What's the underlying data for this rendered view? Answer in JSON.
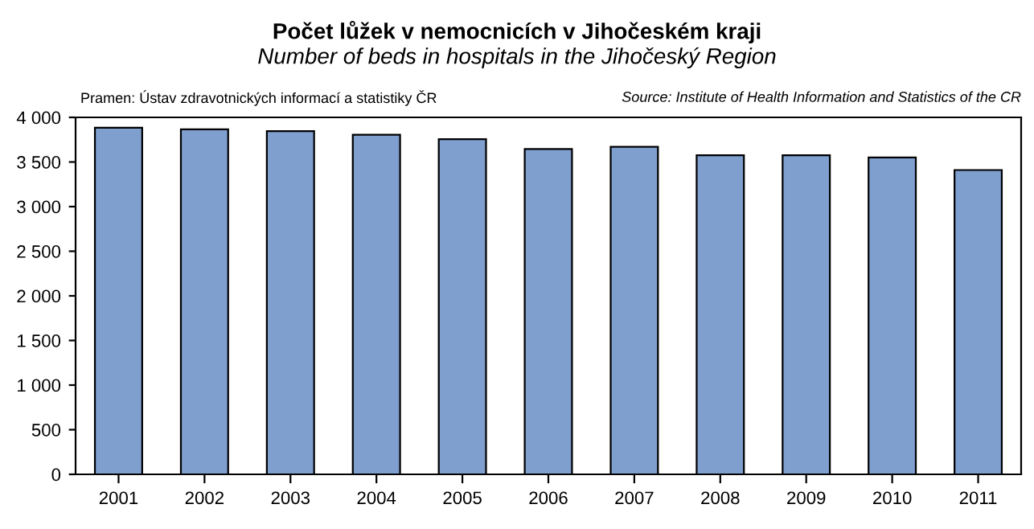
{
  "chart_data": {
    "type": "bar",
    "title": "Počet lůžek v nemocnicích v Jihočeském kraji",
    "subtitle": "Number of beds in hospitals in the Jihočeský Region",
    "annotations": [
      "Pramen: Ústav zdravotnických informací a statistiky ČR",
      "Source: Institute of Health Information and Statistics of the CR"
    ],
    "categories": [
      "2001",
      "2002",
      "2003",
      "2004",
      "2005",
      "2006",
      "2007",
      "2008",
      "2009",
      "2010",
      "2011"
    ],
    "values": [
      3885,
      3865,
      3845,
      3805,
      3755,
      3645,
      3670,
      3575,
      3575,
      3550,
      3410
    ],
    "color": "#7f9fcf",
    "ylim": [
      0,
      4000
    ],
    "yticks": [
      {
        "value": 0,
        "label": "0"
      },
      {
        "value": 500,
        "label": "500"
      },
      {
        "value": 1000,
        "label": "1 000"
      },
      {
        "value": 1500,
        "label": "1 500"
      },
      {
        "value": 2000,
        "label": "2 000"
      },
      {
        "value": 2500,
        "label": "2 500"
      },
      {
        "value": 3000,
        "label": "3 000"
      },
      {
        "value": 3500,
        "label": "3 500"
      },
      {
        "value": 4000,
        "label": "4 000"
      }
    ],
    "grid": false,
    "legend": false
  }
}
